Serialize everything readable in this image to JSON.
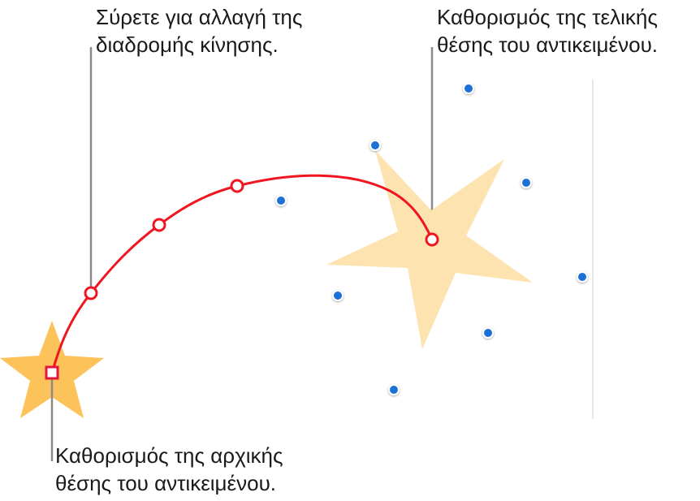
{
  "callouts": {
    "path_drag": {
      "line1": "Σύρετε για αλλαγή της",
      "line2": "διαδρομής κίνησης."
    },
    "end_position": {
      "line1": "Καθορισμός της τελικής",
      "line2": "θέσης του αντικειμένου."
    },
    "start_position": {
      "line1": "Καθορισμός της αρχικής",
      "line2": "θέσης του αντικειμένου."
    }
  },
  "colors": {
    "path": "#f0161f",
    "start_star": "#fcc35a",
    "end_star": "#fde3b0",
    "selection_handle": "#1f6fd6",
    "leader_line": "#8a8a8a",
    "guide_line": "#e0e0e0",
    "text": "#1a1a1a"
  }
}
